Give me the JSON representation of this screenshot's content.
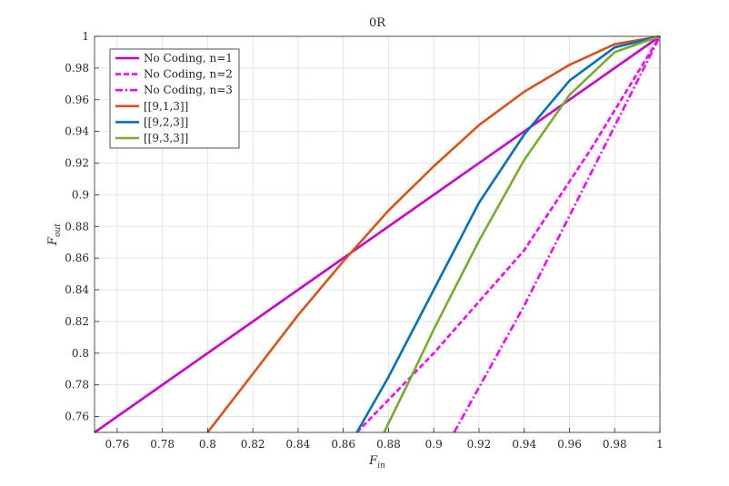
{
  "chart_data": {
    "type": "line",
    "title": "0R",
    "xlabel": "F_in",
    "ylabel": "F_out",
    "xlim": [
      0.75,
      1.0
    ],
    "ylim": [
      0.75,
      1.0
    ],
    "xticks": [
      "0.76",
      "0.78",
      "0.8",
      "0.82",
      "0.84",
      "0.86",
      "0.88",
      "0.9",
      "0.92",
      "0.94",
      "0.96",
      "0.98",
      "1"
    ],
    "xtick_values": [
      0.76,
      0.78,
      0.8,
      0.82,
      0.84,
      0.86,
      0.88,
      0.9,
      0.92,
      0.94,
      0.96,
      0.98,
      1.0
    ],
    "yticks": [
      "0.76",
      "0.78",
      "0.8",
      "0.82",
      "0.84",
      "0.86",
      "0.88",
      "0.9",
      "0.92",
      "0.94",
      "0.96",
      "0.98",
      "1"
    ],
    "ytick_values": [
      0.76,
      0.78,
      0.8,
      0.82,
      0.84,
      0.86,
      0.88,
      0.9,
      0.92,
      0.94,
      0.96,
      0.98,
      1.0
    ],
    "grid": true,
    "legend_position": "top-left",
    "series": [
      {
        "name": "No Coding, n=1",
        "color": "#cc00cc",
        "dash": "solid",
        "x": [
          0.75,
          1.0
        ],
        "y": [
          0.75,
          1.0
        ]
      },
      {
        "name": "No Coding, n=2",
        "color": "#ff00ff",
        "dash": "dashed",
        "x": [
          0.866,
          0.9,
          0.94,
          0.97,
          1.0
        ],
        "y": [
          0.75,
          0.8,
          0.865,
          0.93,
          1.0
        ]
      },
      {
        "name": "No Coding, n=3",
        "color": "#ff00ff",
        "dash": "dashdot",
        "x": [
          0.909,
          0.94,
          0.97,
          1.0
        ],
        "y": [
          0.75,
          0.83,
          0.915,
          1.0
        ]
      },
      {
        "name": "[[9,1,3]]",
        "color": "#d95319",
        "dash": "solid",
        "x": [
          0.8,
          0.82,
          0.84,
          0.86,
          0.88,
          0.9,
          0.92,
          0.94,
          0.96,
          0.98,
          1.0
        ],
        "y": [
          0.75,
          0.787,
          0.824,
          0.858,
          0.89,
          0.918,
          0.944,
          0.965,
          0.982,
          0.995,
          1.0
        ]
      },
      {
        "name": "[[9,2,3]]",
        "color": "#0072bd",
        "dash": "solid",
        "x": [
          0.866,
          0.88,
          0.9,
          0.92,
          0.94,
          0.96,
          0.98,
          1.0
        ],
        "y": [
          0.75,
          0.785,
          0.84,
          0.895,
          0.938,
          0.972,
          0.993,
          1.0
        ]
      },
      {
        "name": "[[9,3,3]]",
        "color": "#77ac30",
        "dash": "solid",
        "x": [
          0.878,
          0.89,
          0.9,
          0.92,
          0.94,
          0.96,
          0.98,
          1.0
        ],
        "y": [
          0.75,
          0.785,
          0.815,
          0.871,
          0.922,
          0.963,
          0.99,
          1.0
        ]
      }
    ]
  }
}
